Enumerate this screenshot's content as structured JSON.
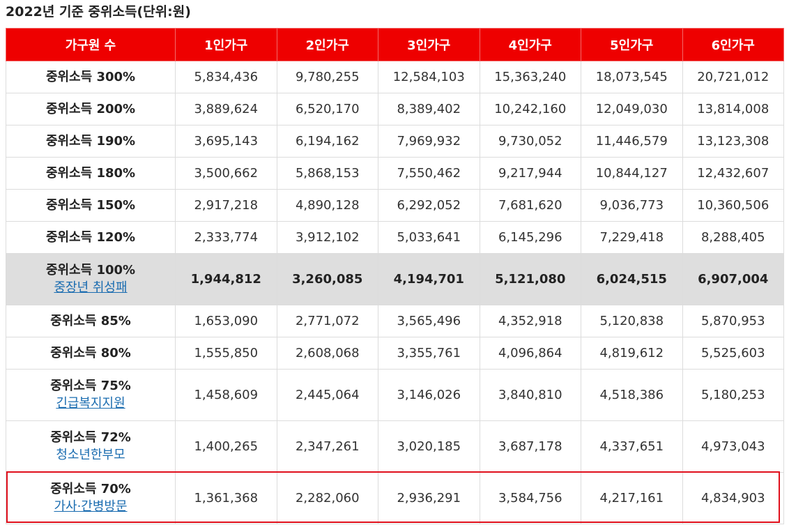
{
  "title": "2022년 기준 중위소득(단위:원)",
  "headers": [
    "가구원 수",
    "1인가구",
    "2인가구",
    "3인가구",
    "4인가구",
    "5인가구",
    "6인가구"
  ],
  "rows": [
    {
      "label": "중위소득 300%",
      "sub": "",
      "values": [
        "5,834,436",
        "9,780,255",
        "12,584,103",
        "15,363,240",
        "18,073,545",
        "20,721,012"
      ]
    },
    {
      "label": "중위소득 200%",
      "sub": "",
      "values": [
        "3,889,624",
        "6,520,170",
        "8,389,402",
        "10,242,160",
        "12,049,030",
        "13,814,008"
      ]
    },
    {
      "label": "중위소득 190%",
      "sub": "",
      "values": [
        "3,695,143",
        "6,194,162",
        "7,969,932",
        "9,730,052",
        "11,446,579",
        "13,123,308"
      ]
    },
    {
      "label": "중위소득 180%",
      "sub": "",
      "values": [
        "3,500,662",
        "5,868,153",
        "7,550,462",
        "9,217,944",
        "10,844,127",
        "12,432,607"
      ]
    },
    {
      "label": "중위소득 150%",
      "sub": "",
      "values": [
        "2,917,218",
        "4,890,128",
        "6,292,052",
        "7,681,620",
        "9,036,773",
        "10,360,506"
      ]
    },
    {
      "label": "중위소득 120%",
      "sub": "",
      "values": [
        "2,333,774",
        "3,912,102",
        "5,033,641",
        "6,145,296",
        "7,229,418",
        "8,288,405"
      ]
    },
    {
      "label": "중위소득 100%",
      "sub": "중장년 취성패",
      "values": [
        "1,944,812",
        "3,260,085",
        "4,194,701",
        "5,121,080",
        "6,024,515",
        "6,907,004"
      ]
    },
    {
      "label": "중위소득 85%",
      "sub": "",
      "values": [
        "1,653,090",
        "2,771,072",
        "3,565,496",
        "4,352,918",
        "5,120,838",
        "5,870,953"
      ]
    },
    {
      "label": "중위소득 80%",
      "sub": "",
      "values": [
        "1,555,850",
        "2,608,068",
        "3,355,761",
        "4,096,864",
        "4,819,612",
        "5,525,603"
      ]
    },
    {
      "label": "중위소득 75%",
      "sub": "긴급복지지원",
      "values": [
        "1,458,609",
        "2,445,064",
        "3,146,026",
        "3,840,810",
        "4,518,386",
        "5,180,253"
      ]
    },
    {
      "label": "중위소득 72%",
      "sub": "청소년한부모",
      "values": [
        "1,400,265",
        "2,347,261",
        "3,020,185",
        "3,687,178",
        "4,337,651",
        "4,973,043"
      ]
    },
    {
      "label": "중위소득 70%",
      "sub": "가사·간병방문",
      "values": [
        "1,361,368",
        "2,282,060",
        "2,936,291",
        "3,584,756",
        "4,217,161",
        "4,834,903"
      ]
    }
  ],
  "colors": {
    "header_bg": "#ee0000",
    "highlight_row_bg": "#dedede",
    "link": "#1a6cb0",
    "highlight_box": "#e0101c"
  }
}
